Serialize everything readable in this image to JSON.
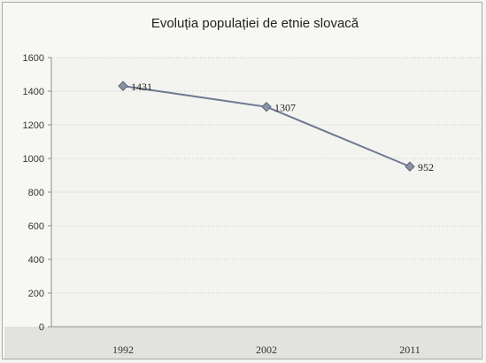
{
  "chart_data": {
    "type": "line",
    "title": "Evoluția populației de etnie slovacă",
    "xlabel": "",
    "ylabel": "",
    "categories": [
      "1992",
      "2002",
      "2011"
    ],
    "series": [
      {
        "values": [
          1431,
          1307,
          952
        ],
        "color": "#6d7a8f"
      }
    ],
    "ylim": [
      0,
      1600
    ],
    "yticks": [
      0,
      200,
      400,
      600,
      800,
      1000,
      1200,
      1400,
      1600
    ],
    "grid": true,
    "legend": "none",
    "data_labels": [
      "1431",
      "1307",
      "952"
    ]
  }
}
